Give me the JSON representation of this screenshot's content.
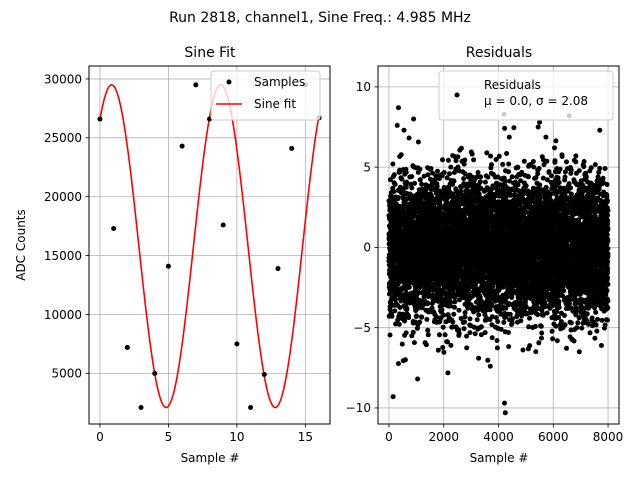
{
  "figure_title": "Run 2818, channel1, Sine Freq.: 4.985 MHz",
  "chart_data": [
    {
      "type": "scatter",
      "title": "Sine Fit",
      "xlabel": "Sample #",
      "ylabel": "ADC Counts",
      "xlim": [
        -0.8,
        16.8
      ],
      "ylim": [
        700,
        31100
      ],
      "xticks": [
        0,
        5,
        10,
        15
      ],
      "yticks": [
        5000,
        10000,
        15000,
        20000,
        25000,
        30000
      ],
      "grid": true,
      "legend_position": "top-right",
      "series": [
        {
          "name": "Samples",
          "kind": "points",
          "color": "#000000",
          "x": [
            0,
            1,
            2,
            3,
            4,
            5,
            6,
            7,
            8,
            9,
            10,
            11,
            12,
            13,
            14,
            15,
            16
          ],
          "y": [
            26600,
            17300,
            7200,
            2100,
            5000,
            14100,
            24300,
            29500,
            26600,
            17600,
            7500,
            2100,
            4900,
            13900,
            24100,
            29500,
            26700
          ]
        },
        {
          "name": "Sine fit",
          "kind": "line",
          "color": "#ff0000",
          "model": {
            "amplitude": 13700,
            "offset": 15800,
            "period": 7.97,
            "phase": 0.9,
            "x_from": 0,
            "x_to": 16,
            "steps": 320
          }
        }
      ]
    },
    {
      "type": "scatter",
      "title": "Residuals",
      "xlabel": "Sample #",
      "ylabel": "",
      "xlim": [
        -400,
        8400
      ],
      "ylim": [
        -11,
        11.3
      ],
      "xticks": [
        0,
        2000,
        4000,
        6000,
        8000
      ],
      "yticks": [
        -10,
        -5,
        0,
        5,
        10
      ],
      "grid": true,
      "legend_position": "top-right",
      "legend_lines": [
        "Residuals",
        "μ = 0.0, σ = 2.08"
      ],
      "series": [
        {
          "name": "Residuals",
          "color": "#000000",
          "distribution": {
            "count": 8000,
            "x_from": 0,
            "x_to": 8000,
            "mean": 0.0,
            "sigma": 2.08
          },
          "outliers": [
            {
              "x": 150,
              "y": -9.3
            },
            {
              "x": 4220,
              "y": -9.7
            },
            {
              "x": 4250,
              "y": -10.3
            },
            {
              "x": 2500,
              "y": 9.5
            },
            {
              "x": 4200,
              "y": 8.3
            },
            {
              "x": 350,
              "y": 8.7
            },
            {
              "x": 300,
              "y": 7.6
            },
            {
              "x": 900,
              "y": 8.0
            },
            {
              "x": 550,
              "y": 7.3
            },
            {
              "x": 5500,
              "y": 7.8
            },
            {
              "x": 5450,
              "y": 7.5
            },
            {
              "x": 7700,
              "y": 7.3
            },
            {
              "x": 600,
              "y": -7.0
            },
            {
              "x": 3700,
              "y": -7.4
            },
            {
              "x": 6950,
              "y": -6.5
            },
            {
              "x": 1800,
              "y": -6.4
            }
          ]
        }
      ]
    }
  ]
}
